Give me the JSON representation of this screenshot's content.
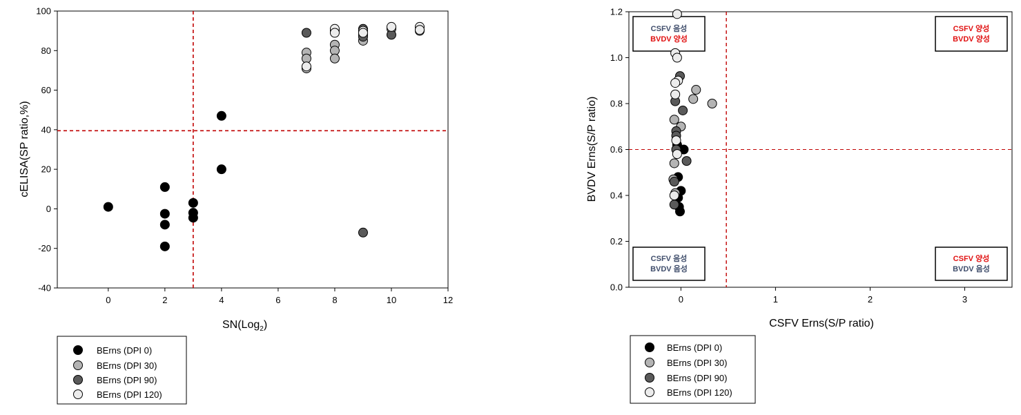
{
  "colors": {
    "dpi0": "#000000",
    "dpi30": "#b4b4b4",
    "dpi90": "#5a5a5a",
    "dpi120": "#ececec",
    "threshold": "#c00000",
    "negative_text": "#3f4d6b",
    "positive_text": "#e01010"
  },
  "chart_data": [
    {
      "type": "scatter",
      "xlabel_main": "SN(Log",
      "xlabel_sub": "2",
      "xlabel_end": ")",
      "ylabel": "cELISA(SP ratio,%)",
      "xlim": [
        -1.8,
        12
      ],
      "ylim": [
        -40,
        100
      ],
      "x_ticks": [
        0,
        2,
        4,
        6,
        8,
        10,
        12
      ],
      "y_ticks": [
        -40,
        -20,
        0,
        20,
        40,
        60,
        80,
        100
      ],
      "thresholds": {
        "x": 3,
        "y": 39.5
      },
      "grid": false,
      "legend_position": "below",
      "series": [
        {
          "name": "BErns (DPI 0)",
          "color_key": "dpi0",
          "points": [
            [
              0,
              1
            ],
            [
              2,
              11
            ],
            [
              2,
              -2.5
            ],
            [
              2,
              -8
            ],
            [
              2,
              -19
            ],
            [
              3,
              3
            ],
            [
              3,
              -2
            ],
            [
              3,
              -4.5
            ],
            [
              4,
              47
            ],
            [
              4,
              20
            ]
          ]
        },
        {
          "name": "BErns (DPI 30)",
          "color_key": "dpi30",
          "points": [
            [
              7,
              79
            ],
            [
              7,
              76
            ],
            [
              7,
              71
            ],
            [
              8,
              83
            ],
            [
              8,
              80
            ],
            [
              8,
              76
            ],
            [
              8,
              90
            ],
            [
              9,
              88
            ],
            [
              9,
              85
            ],
            [
              10,
              91
            ],
            [
              11,
              90
            ]
          ]
        },
        {
          "name": "BErns (DPI 90)",
          "color_key": "dpi90",
          "points": [
            [
              7,
              89
            ],
            [
              9,
              91
            ],
            [
              9,
              87
            ],
            [
              9,
              -12
            ],
            [
              10,
              88
            ]
          ]
        },
        {
          "name": "BErns (DPI 120)",
          "color_key": "dpi120",
          "points": [
            [
              7,
              72
            ],
            [
              8,
              91
            ],
            [
              8,
              89
            ],
            [
              9,
              90
            ],
            [
              9,
              89
            ],
            [
              10,
              92
            ],
            [
              11,
              92
            ],
            [
              11,
              90.5
            ]
          ]
        }
      ]
    },
    {
      "type": "scatter",
      "xlabel": "CSFV Erns(S/P ratio)",
      "ylabel": "BVDV Erns(S/P ratio)",
      "xlim": [
        -0.55,
        3.5
      ],
      "ylim": [
        0,
        1.2
      ],
      "x_ticks": [
        0,
        1,
        2,
        3
      ],
      "y_ticks": [
        0.0,
        0.2,
        0.4,
        0.6,
        0.8,
        1.0,
        1.2
      ],
      "y_tick_labels": [
        "0.0",
        "0.2",
        "0.4",
        "0.6",
        "0.8",
        "1.0",
        "1.2"
      ],
      "thresholds": {
        "x": 0.48,
        "y": 0.6
      },
      "grid": false,
      "legend_position": "below",
      "quadrant_labels": {
        "top_left": [
          "CSFV 음성",
          "BVDV 양성"
        ],
        "top_right": [
          "CSFV 양성",
          "BVDV 양성"
        ],
        "bottom_left": [
          "CSFV 음성",
          "BVDV 음성"
        ],
        "bottom_right": [
          "CSFV 양성",
          "BVDV 음성"
        ]
      },
      "series": [
        {
          "name": "BErns (DPI 0)",
          "color_key": "dpi0",
          "points": [
            [
              0.03,
              0.6
            ],
            [
              -0.04,
              0.62
            ],
            [
              -0.03,
              0.48
            ],
            [
              0,
              0.42
            ],
            [
              -0.03,
              0.39
            ],
            [
              -0.02,
              0.35
            ],
            [
              -0.01,
              0.33
            ]
          ]
        },
        {
          "name": "BErns (DPI 30)",
          "color_key": "dpi30",
          "points": [
            [
              0.16,
              0.86
            ],
            [
              0.13,
              0.82
            ],
            [
              0.33,
              0.8
            ],
            [
              -0.07,
              0.73
            ],
            [
              -0.07,
              0.54
            ],
            [
              -0.08,
              0.47
            ],
            [
              -0.06,
              0.41
            ],
            [
              0,
              0.7
            ]
          ]
        },
        {
          "name": "BErns (DPI 90)",
          "color_key": "dpi90",
          "points": [
            [
              -0.01,
              0.92
            ],
            [
              -0.06,
              0.81
            ],
            [
              0.02,
              0.77
            ],
            [
              -0.05,
              0.68
            ],
            [
              -0.05,
              0.66
            ],
            [
              -0.05,
              0.6
            ],
            [
              0.06,
              0.55
            ],
            [
              -0.07,
              0.46
            ],
            [
              -0.07,
              0.36
            ]
          ]
        },
        {
          "name": "BErns (DPI 120)",
          "color_key": "dpi120",
          "points": [
            [
              -0.04,
              1.19
            ],
            [
              -0.06,
              1.02
            ],
            [
              -0.04,
              1.0
            ],
            [
              -0.03,
              0.9
            ],
            [
              -0.06,
              0.89
            ],
            [
              -0.06,
              0.84
            ],
            [
              -0.05,
              0.64
            ],
            [
              -0.04,
              0.58
            ],
            [
              -0.07,
              0.4
            ]
          ]
        }
      ]
    }
  ]
}
